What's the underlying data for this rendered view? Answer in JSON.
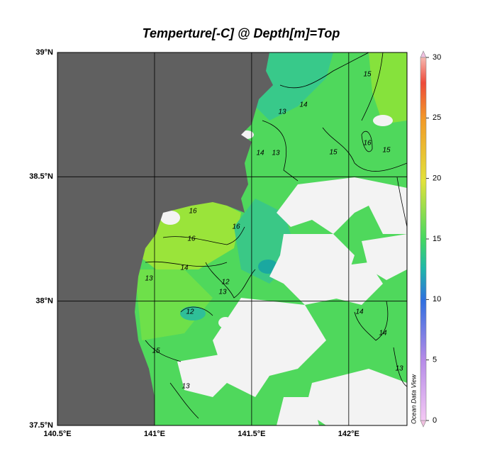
{
  "chart_data": {
    "type": "map",
    "title": "Temperture[-C] @ Depth[m]=Top",
    "xlim": [
      140.5,
      142.3
    ],
    "ylim": [
      37.5,
      39
    ],
    "xticks": [
      {
        "value": 140.5,
        "label": "140.5°E"
      },
      {
        "value": 141,
        "label": "141°E"
      },
      {
        "value": 141.5,
        "label": "141.5°E"
      },
      {
        "value": 142,
        "label": "142°E"
      }
    ],
    "yticks": [
      {
        "value": 37.5,
        "label": "37.5°N"
      },
      {
        "value": 38,
        "label": "38°N"
      },
      {
        "value": 38.5,
        "label": "38.5°N"
      },
      {
        "value": 39,
        "label": "39°N"
      }
    ],
    "grid": true,
    "colorbar": {
      "lim": [
        0,
        30
      ],
      "ticks": [
        0,
        5,
        10,
        15,
        20,
        25,
        30
      ]
    },
    "watermark": "Ocean Data View",
    "contour_labels": [
      13,
      14,
      15,
      15,
      16,
      15,
      14,
      13,
      16,
      16,
      16,
      14,
      13,
      12,
      13,
      12,
      14,
      14,
      15,
      13,
      13
    ]
  }
}
